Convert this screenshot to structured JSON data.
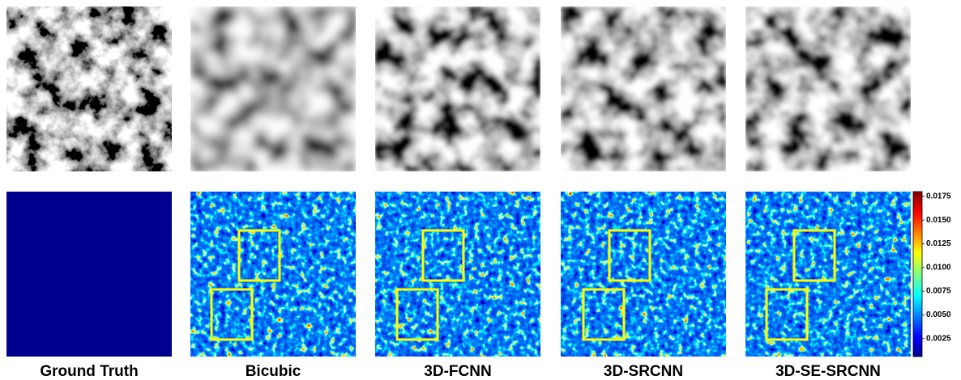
{
  "figure": {
    "methods": [
      "Ground Truth",
      "Bicubic",
      "3D-FCNN",
      "3D-SRCNN",
      "3D-SE-SRCNN"
    ],
    "colorbar": {
      "lim": [
        0.0006,
        0.018
      ],
      "ticks": [
        0.0025,
        {
          "value": 0.005,
          "label": "0.0050"
        },
        0.0075,
        {
          "value": 0.01,
          "label": "0.0100"
        },
        0.0125,
        {
          "value": 0.015,
          "label": "0.0150"
        },
        0.0175
      ]
    }
  }
}
